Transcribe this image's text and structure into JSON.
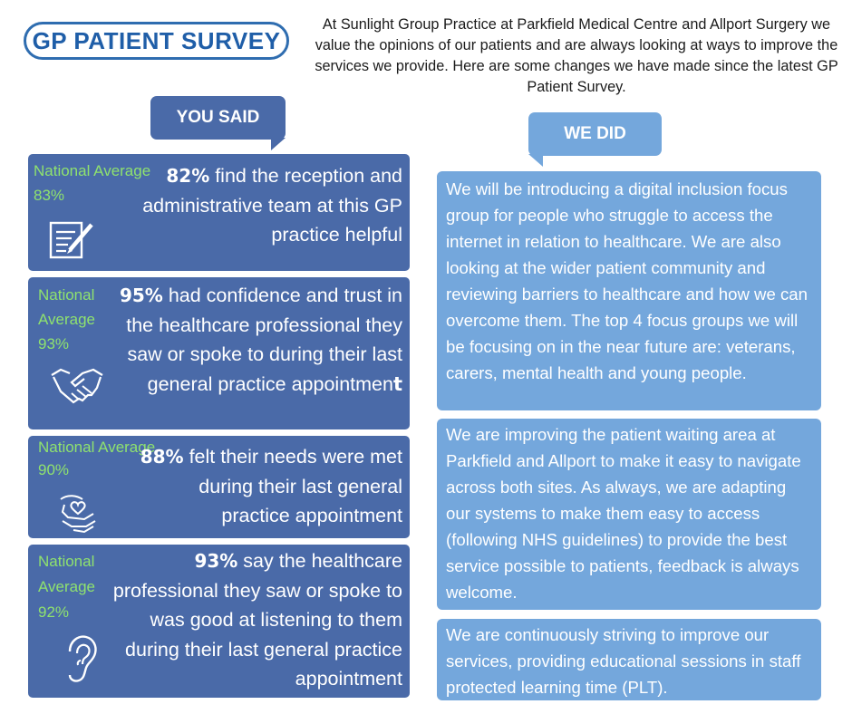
{
  "header": {
    "logo_text": "GP PATIENT SURVEY",
    "intro": "At Sunlight Group Practice at Parkfield Medical Centre and Allport Surgery we value the opinions of our patients and are always looking at ways to improve the services we provide.  Here are some changes we have made since the latest GP Patient Survey."
  },
  "you_said": {
    "label": "YOU SAID",
    "items": [
      {
        "percent": "82%",
        "text": " find the reception and administrative team at this GP practice helpful",
        "national": "National Average 83%",
        "icon": "clipboard-pen-icon"
      },
      {
        "percent": "95%",
        "text": " had confidence and trust in the healthcare professional they saw or spoke to during their last general practice appointmen",
        "text_tail": "t",
        "national": "National Average 93%",
        "icon": "handshake-icon"
      },
      {
        "percent": "88%",
        "text": " felt their needs were met during their last general practice appointment",
        "national": "National Average 90%",
        "icon": "hands-heart-icon"
      },
      {
        "percent": "93%",
        "text": " say the healthcare professional they saw or spoke to was good at listening to them during their last general practice appointment",
        "national": "National Average 92%",
        "icon": "ear-icon"
      }
    ]
  },
  "we_did": {
    "label": "WE DID",
    "items": [
      {
        "text": "We will be introducing a digital inclusion focus group for people who struggle to access the internet in relation to healthcare. We are also looking at the wider patient community and reviewing barriers to healthcare and how we can overcome them. The top 4 focus groups we will be focusing on in the near future are: veterans, carers, mental health and young people."
      },
      {
        "text": "We are improving the patient waiting area at Parkfield and Allport to make it easy to navigate  across both sites. As always, we are adapting our systems to make them easy to access (following NHS guidelines) to provide the best service possible to patients, feedback is always welcome."
      },
      {
        "text": "We are continuously striving to improve our services, providing educational sessions in staff protected learning time (PLT)."
      }
    ]
  },
  "colors": {
    "you_said_bg": "#4a6aa8",
    "we_did_bg": "#74a7dc",
    "national_text": "#8fe26e",
    "logo_blue": "#1f5ea8"
  }
}
